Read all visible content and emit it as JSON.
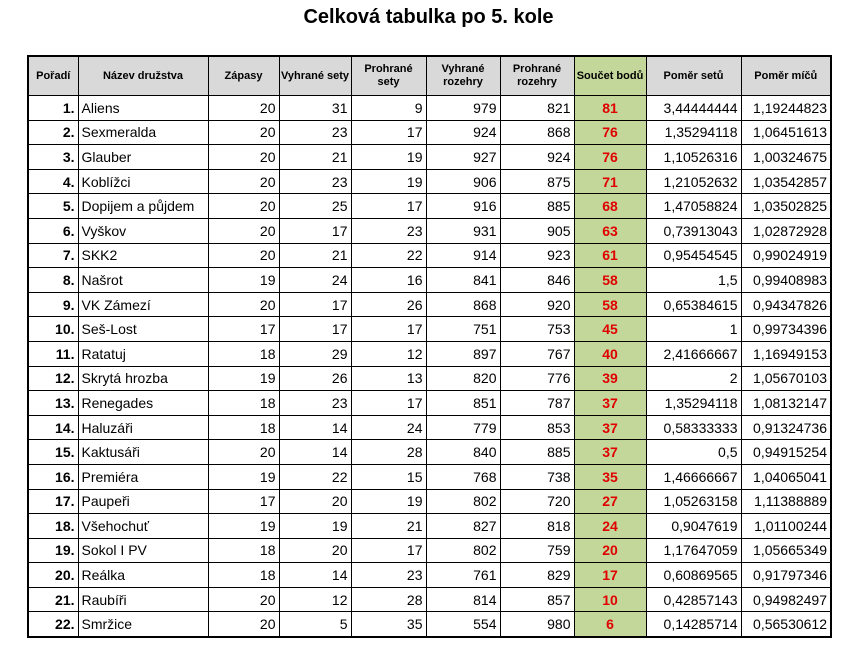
{
  "title": "Celková tabulka po 5. kole",
  "table": {
    "header": [
      "Pořadí",
      "Název družstva",
      "Zápasy",
      "Vyhrané sety",
      "Prohrané sety",
      "Vyhrané rozehry",
      "Prohrané rozehry",
      "Součet bodů",
      "Poměr setů",
      "Poměr míčů"
    ],
    "rows": [
      [
        "1.",
        "Aliens",
        "20",
        "31",
        "9",
        "979",
        "821",
        "81",
        "3,44444444",
        "1,19244823"
      ],
      [
        "2.",
        "Sexmeralda",
        "20",
        "23",
        "17",
        "924",
        "868",
        "76",
        "1,35294118",
        "1,06451613"
      ],
      [
        "3.",
        "Glauber",
        "20",
        "21",
        "19",
        "927",
        "924",
        "76",
        "1,10526316",
        "1,00324675"
      ],
      [
        "4.",
        "Koblížci",
        "20",
        "23",
        "19",
        "906",
        "875",
        "71",
        "1,21052632",
        "1,03542857"
      ],
      [
        "5.",
        "Dopijem a půjdem",
        "20",
        "25",
        "17",
        "916",
        "885",
        "68",
        "1,47058824",
        "1,03502825"
      ],
      [
        "6.",
        "Vyškov",
        "20",
        "17",
        "23",
        "931",
        "905",
        "63",
        "0,73913043",
        "1,02872928"
      ],
      [
        "7.",
        "SKK2",
        "20",
        "21",
        "22",
        "914",
        "923",
        "61",
        "0,95454545",
        "0,99024919"
      ],
      [
        "8.",
        "Našrot",
        "19",
        "24",
        "16",
        "841",
        "846",
        "58",
        "1,5",
        "0,99408983"
      ],
      [
        "9.",
        "VK Zámezí",
        "20",
        "17",
        "26",
        "868",
        "920",
        "58",
        "0,65384615",
        "0,94347826"
      ],
      [
        "10.",
        "Seš-Lost",
        "17",
        "17",
        "17",
        "751",
        "753",
        "45",
        "1",
        "0,99734396"
      ],
      [
        "11.",
        "Ratatuj",
        "18",
        "29",
        "12",
        "897",
        "767",
        "40",
        "2,41666667",
        "1,16949153"
      ],
      [
        "12.",
        "Skrytá hrozba",
        "19",
        "26",
        "13",
        "820",
        "776",
        "39",
        "2",
        "1,05670103"
      ],
      [
        "13.",
        "Renegades",
        "18",
        "23",
        "17",
        "851",
        "787",
        "37",
        "1,35294118",
        "1,08132147"
      ],
      [
        "14.",
        "Haluzáři",
        "18",
        "14",
        "24",
        "779",
        "853",
        "37",
        "0,58333333",
        "0,91324736"
      ],
      [
        "15.",
        "Kaktusáři",
        "20",
        "14",
        "28",
        "840",
        "885",
        "37",
        "0,5",
        "0,94915254"
      ],
      [
        "16.",
        "Premiéra",
        "19",
        "22",
        "15",
        "768",
        "738",
        "35",
        "1,46666667",
        "1,04065041"
      ],
      [
        "17.",
        "Paupeři",
        "17",
        "20",
        "19",
        "802",
        "720",
        "27",
        "1,05263158",
        "1,11388889"
      ],
      [
        "18.",
        "Všehochuť",
        "19",
        "19",
        "21",
        "827",
        "818",
        "24",
        "0,9047619",
        "1,01100244"
      ],
      [
        "19.",
        "Sokol I PV",
        "18",
        "20",
        "17",
        "802",
        "759",
        "20",
        "1,17647059",
        "1,05665349"
      ],
      [
        "20.",
        "Reálka",
        "18",
        "14",
        "23",
        "761",
        "829",
        "17",
        "0,60869565",
        "0,91797346"
      ],
      [
        "21.",
        "Raubíři",
        "20",
        "12",
        "28",
        "814",
        "857",
        "10",
        "0,42857143",
        "0,94982497"
      ],
      [
        "22.",
        "Smržice",
        "20",
        "5",
        "35",
        "554",
        "980",
        "6",
        "0,14285714",
        "0,56530612"
      ]
    ]
  }
}
